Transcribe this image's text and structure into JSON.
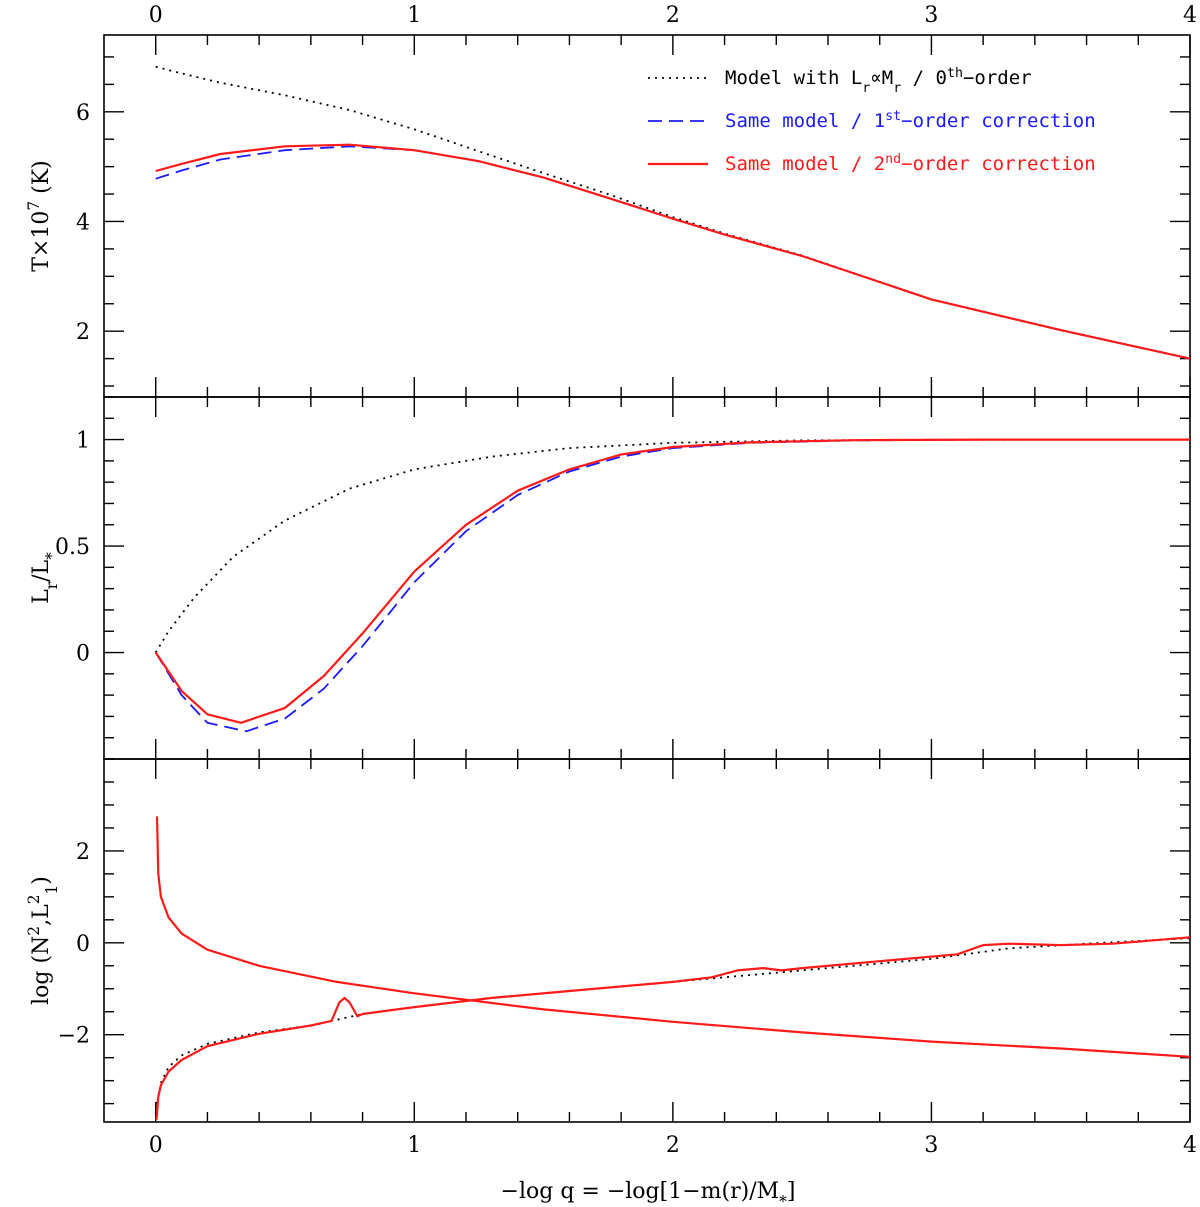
{
  "chart_data": {
    "type": "line",
    "x_axis": {
      "label_parts": [
        "−log q = −log[1−m(r)/M",
        "*",
        "]"
      ],
      "range": [
        -0.2,
        4.0
      ],
      "ticks": [
        0,
        1,
        2,
        3,
        4
      ],
      "tick_labels": [
        "0",
        "1",
        "2",
        "3",
        "4"
      ],
      "minor_step": 0.2
    },
    "colors": {
      "zeroth": "#000000",
      "first": "#1a1aff",
      "second": "#ff1a1a"
    },
    "legend": [
      {
        "key": "zeroth",
        "parts": [
          "Model with L",
          "r",
          "∝M",
          "r",
          " / 0",
          "th",
          "−order"
        ]
      },
      {
        "key": "first",
        "parts": [
          "Same model / 1",
          "st",
          "−order correction"
        ]
      },
      {
        "key": "second",
        "parts": [
          "Same model / 2",
          "nd",
          "−order correction"
        ]
      }
    ],
    "panels": [
      {
        "name": "temperature",
        "ylabel_parts": [
          "T×10",
          "7",
          " (K)"
        ],
        "ylim": [
          0.8,
          7.4
        ],
        "ticks": [
          2,
          4,
          6
        ],
        "tick_labels": [
          "2",
          "4",
          "6"
        ],
        "minor_step": 0.5,
        "series": [
          {
            "key": "zeroth",
            "name": "Model with Lr∝Mr / 0th-order",
            "style": "dotted",
            "x": [
              0,
              0.1,
              0.25,
              0.5,
              0.75,
              1.0,
              1.25,
              1.5,
              1.75,
              2.0,
              2.2,
              2.5,
              3.0,
              3.5,
              4.0
            ],
            "y": [
              6.82,
              6.7,
              6.53,
              6.3,
              6.03,
              5.68,
              5.28,
              4.88,
              4.5,
              4.08,
              3.78,
              3.38,
              2.58,
              2.02,
              1.5
            ]
          },
          {
            "key": "first",
            "name": "Same model / 1st-order correction",
            "style": "dashed",
            "x": [
              0,
              0.1,
              0.25,
              0.5,
              0.75,
              1.0,
              1.25,
              1.5,
              1.75,
              2.0,
              2.2,
              2.5,
              3.0,
              3.5,
              4.0
            ],
            "y": [
              4.78,
              4.93,
              5.13,
              5.3,
              5.37,
              5.3,
              5.1,
              4.8,
              4.43,
              4.05,
              3.76,
              3.37,
              2.58,
              2.02,
              1.5
            ]
          },
          {
            "key": "second",
            "name": "Same model / 2nd-order correction",
            "style": "solid",
            "x": [
              0,
              0.1,
              0.25,
              0.5,
              0.75,
              1.0,
              1.25,
              1.5,
              1.75,
              2.0,
              2.2,
              2.5,
              3.0,
              3.5,
              4.0
            ],
            "y": [
              4.92,
              5.05,
              5.23,
              5.37,
              5.4,
              5.3,
              5.1,
              4.8,
              4.43,
              4.05,
              3.76,
              3.37,
              2.58,
              2.02,
              1.5
            ]
          }
        ]
      },
      {
        "name": "luminosity",
        "ylabel_parts": [
          "L",
          "r",
          "/L",
          "*"
        ],
        "ylim": [
          -0.5,
          1.2
        ],
        "ticks": [
          0,
          0.5,
          1
        ],
        "tick_labels": [
          "0",
          "0.5",
          "1"
        ],
        "minor_step": 0.1,
        "series": [
          {
            "key": "zeroth",
            "style": "dotted",
            "x": [
              0,
              0.05,
              0.15,
              0.3,
              0.5,
              0.75,
              1.0,
              1.3,
              1.6,
              2.0,
              2.5,
              3.0,
              3.5,
              4.0
            ],
            "y": [
              0,
              0.1,
              0.26,
              0.45,
              0.62,
              0.77,
              0.86,
              0.92,
              0.96,
              0.985,
              0.996,
              0.999,
              1.0,
              1.0
            ]
          },
          {
            "key": "first",
            "style": "dashed",
            "x": [
              0,
              0.1,
              0.2,
              0.35,
              0.5,
              0.65,
              0.8,
              1.0,
              1.2,
              1.4,
              1.6,
              1.8,
              2.0,
              2.3,
              2.7,
              3.2,
              4.0
            ],
            "y": [
              0,
              -0.2,
              -0.33,
              -0.37,
              -0.31,
              -0.17,
              0.03,
              0.33,
              0.57,
              0.74,
              0.85,
              0.92,
              0.96,
              0.985,
              0.996,
              1.0,
              1.0
            ]
          },
          {
            "key": "second",
            "style": "solid",
            "x": [
              0,
              0.1,
              0.2,
              0.33,
              0.5,
              0.65,
              0.8,
              1.0,
              1.2,
              1.4,
              1.6,
              1.8,
              2.0,
              2.3,
              2.7,
              3.2,
              4.0
            ],
            "y": [
              0,
              -0.18,
              -0.29,
              -0.33,
              -0.26,
              -0.11,
              0.09,
              0.38,
              0.6,
              0.76,
              0.86,
              0.93,
              0.965,
              0.987,
              0.997,
              1.0,
              1.0
            ]
          }
        ]
      },
      {
        "name": "frequencies",
        "ylabel_parts": [
          "log (N",
          "2",
          ",L",
          "2",
          "1",
          ")"
        ],
        "ylim": [
          -3.9,
          4.0
        ],
        "ticks": [
          -2,
          0,
          2
        ],
        "tick_labels": [
          "−2",
          "0",
          "2"
        ],
        "minor_step": 0.5,
        "series": [
          {
            "key": "second",
            "name": "L1^2",
            "style": "solid",
            "x": [
              0.005,
              0.01,
              0.02,
              0.05,
              0.1,
              0.2,
              0.4,
              0.7,
              1.0,
              1.5,
              2.0,
              2.5,
              3.0,
              3.5,
              4.0
            ],
            "y": [
              2.75,
              1.5,
              1.0,
              0.55,
              0.2,
              -0.15,
              -0.5,
              -0.85,
              -1.1,
              -1.45,
              -1.72,
              -1.95,
              -2.15,
              -2.3,
              -2.48
            ]
          },
          {
            "key": "zeroth",
            "name": "N^2 (0th-order)",
            "style": "dotted",
            "x": [
              0.005,
              0.02,
              0.05,
              0.1,
              0.2,
              0.4,
              0.6,
              0.8,
              1.0,
              1.3,
              1.6,
              2.0,
              2.3,
              2.6,
              3.0,
              3.3,
              3.6,
              4.0
            ],
            "y": [
              -3.5,
              -3.05,
              -2.7,
              -2.45,
              -2.2,
              -1.95,
              -1.8,
              -1.55,
              -1.4,
              -1.2,
              -1.05,
              -0.85,
              -0.7,
              -0.55,
              -0.35,
              -0.12,
              -0.02,
              0.1
            ]
          },
          {
            "key": "second",
            "name": "N^2",
            "style": "solid",
            "x": [
              0.003,
              0.01,
              0.02,
              0.05,
              0.1,
              0.2,
              0.4,
              0.6,
              0.68,
              0.71,
              0.73,
              0.75,
              0.78,
              0.8,
              1.0,
              1.3,
              1.6,
              2.0,
              2.15,
              2.25,
              2.35,
              2.42,
              2.5,
              2.8,
              3.1,
              3.2,
              3.3,
              3.5,
              3.7,
              4.0
            ],
            "y": [
              -3.85,
              -3.35,
              -3.1,
              -2.8,
              -2.55,
              -2.25,
              -1.98,
              -1.8,
              -1.7,
              -1.3,
              -1.2,
              -1.3,
              -1.6,
              -1.55,
              -1.4,
              -1.2,
              -1.05,
              -0.85,
              -0.75,
              -0.6,
              -0.55,
              -0.6,
              -0.55,
              -0.4,
              -0.25,
              -0.05,
              -0.02,
              -0.05,
              -0.02,
              0.12
            ]
          }
        ]
      }
    ]
  }
}
